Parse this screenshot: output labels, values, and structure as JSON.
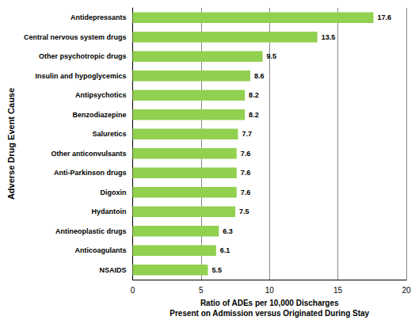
{
  "chart_data": {
    "type": "bar",
    "orientation": "horizontal",
    "xlabel": "Ratio of ADEs per 10,000 Discharges\nPresent on Admission versus Originated During Stay",
    "ylabel": "Adverse Drug Event Cause",
    "categories": [
      "Antidepressants",
      "Central nervous system drugs",
      "Other psychotropic drugs",
      "Insulin and hypoglycemics",
      "Antipsychotics",
      "Benzodiazepine",
      "Saluretics",
      "Other anticonvulsants",
      "Anti-Parkinson drugs",
      "Digoxin",
      "Hydantoin",
      "Antineoplastic drugs",
      "Anticoagulants",
      "NSAIDS"
    ],
    "values": [
      17.6,
      13.5,
      9.5,
      8.6,
      8.2,
      8.2,
      7.7,
      7.6,
      7.6,
      7.6,
      7.5,
      6.3,
      6.1,
      5.5
    ],
    "color": "#92d050",
    "xlim": [
      0,
      20
    ],
    "xticks": [
      0,
      5,
      10,
      15,
      20
    ],
    "grid": true,
    "data_labels": true
  }
}
